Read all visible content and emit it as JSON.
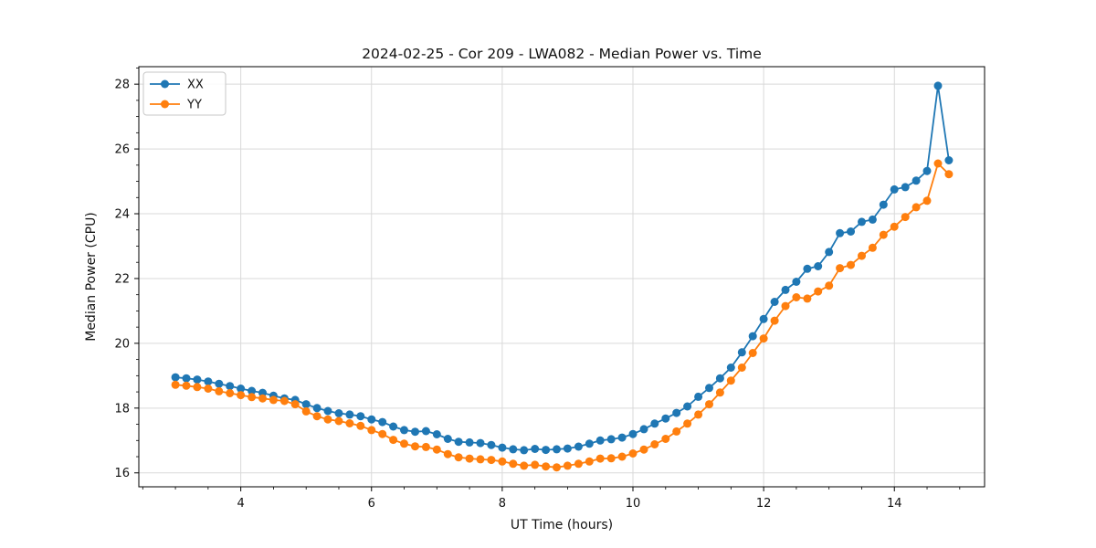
{
  "figure": {
    "background": "#ffffff",
    "plot_background": "#ffffff",
    "grid_color": "#d9d9d9",
    "spine_color": "#000000",
    "text_color": "#111111"
  },
  "legend": {
    "position": "upper-left",
    "items": [
      {
        "label": "XX",
        "color": "#1f77b4"
      },
      {
        "label": "YY",
        "color": "#ff7f0e"
      }
    ]
  },
  "chart_data": {
    "type": "line",
    "title": "2024-02-25 - Cor 209 - LWA082 - Median Power vs. Time",
    "xlabel": "UT Time (hours)",
    "ylabel": "Median Power (CPU)",
    "xlim": [
      2.44,
      15.38
    ],
    "ylim": [
      15.57,
      28.54
    ],
    "x_ticks": [
      4,
      6,
      8,
      10,
      12,
      14
    ],
    "y_ticks": [
      16,
      18,
      20,
      22,
      24,
      26,
      28
    ],
    "minor_tick_step": 0.5,
    "grid": true,
    "legend_position": "upper-left",
    "marker": "circle",
    "x": [
      3,
      3.167,
      3.333,
      3.5,
      3.667,
      3.833,
      4,
      4.167,
      4.333,
      4.5,
      4.667,
      4.833,
      5,
      5.167,
      5.333,
      5.5,
      5.667,
      5.833,
      6,
      6.167,
      6.333,
      6.5,
      6.667,
      6.833,
      7,
      7.167,
      7.333,
      7.5,
      7.667,
      7.833,
      8,
      8.167,
      8.333,
      8.5,
      8.667,
      8.833,
      9,
      9.167,
      9.333,
      9.5,
      9.667,
      9.833,
      10,
      10.167,
      10.333,
      10.5,
      10.667,
      10.833,
      11,
      11.167,
      11.333,
      11.5,
      11.667,
      11.833,
      12,
      12.167,
      12.333,
      12.5,
      12.667,
      12.833,
      13,
      13.167,
      13.333,
      13.5,
      13.667,
      13.833,
      14,
      14.167,
      14.333,
      14.5,
      14.667,
      14.833
    ],
    "series": [
      {
        "name": "XX",
        "color": "#1f77b4",
        "values": [
          18.95,
          18.92,
          18.88,
          18.82,
          18.75,
          18.68,
          18.6,
          18.53,
          18.47,
          18.38,
          18.3,
          18.25,
          18.12,
          18.0,
          17.91,
          17.84,
          17.8,
          17.75,
          17.65,
          17.57,
          17.43,
          17.32,
          17.27,
          17.29,
          17.19,
          17.05,
          16.96,
          16.94,
          16.92,
          16.86,
          16.78,
          16.73,
          16.7,
          16.74,
          16.71,
          16.73,
          16.75,
          16.81,
          16.9,
          17.0,
          17.04,
          17.09,
          17.2,
          17.35,
          17.52,
          17.68,
          17.85,
          18.05,
          18.35,
          18.62,
          18.92,
          19.25,
          19.72,
          20.22,
          20.75,
          21.28,
          21.65,
          21.9,
          22.3,
          22.38,
          22.82,
          23.4,
          23.45,
          23.75,
          23.82,
          24.28,
          24.75,
          24.82,
          25.02,
          25.32,
          27.95,
          25.65
        ]
      },
      {
        "name": "YY",
        "color": "#ff7f0e",
        "values": [
          18.72,
          18.69,
          18.65,
          18.6,
          18.52,
          18.46,
          18.4,
          18.34,
          18.3,
          18.25,
          18.22,
          18.12,
          17.9,
          17.75,
          17.65,
          17.6,
          17.53,
          17.45,
          17.32,
          17.2,
          17.02,
          16.9,
          16.82,
          16.8,
          16.72,
          16.58,
          16.48,
          16.44,
          16.42,
          16.4,
          16.35,
          16.28,
          16.22,
          16.25,
          16.2,
          16.17,
          16.22,
          16.28,
          16.35,
          16.44,
          16.45,
          16.5,
          16.6,
          16.72,
          16.88,
          17.05,
          17.28,
          17.52,
          17.8,
          18.12,
          18.48,
          18.85,
          19.25,
          19.7,
          20.15,
          20.7,
          21.15,
          21.42,
          21.38,
          21.6,
          21.78,
          22.32,
          22.42,
          22.7,
          22.95,
          23.35,
          23.6,
          23.9,
          24.2,
          24.4,
          25.55,
          25.22
        ]
      }
    ]
  }
}
